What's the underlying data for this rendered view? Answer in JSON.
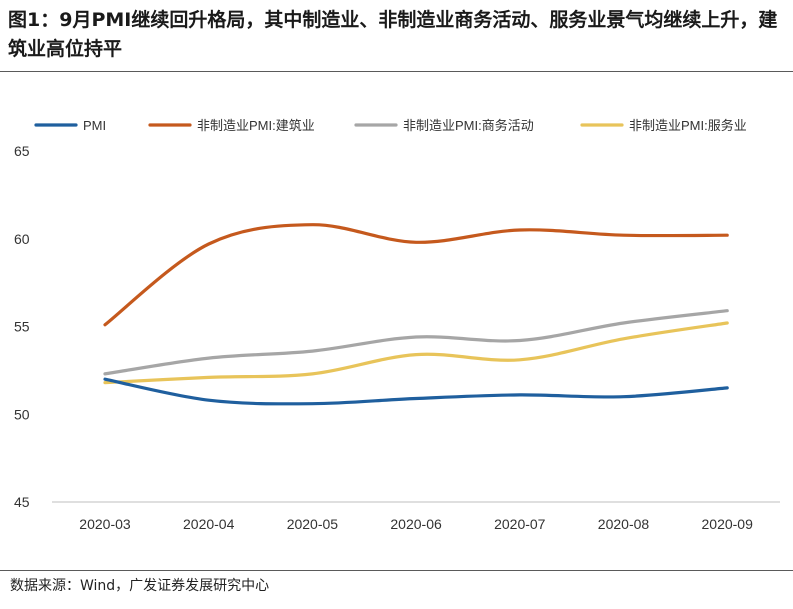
{
  "title": "图1：9月PMI继续回升格局，其中制造业、非制造业商务活动、服务业景气均继续上升，建筑业高位持平",
  "source": "数据来源：Wind，广发证券发展研究中心",
  "chart_data": {
    "type": "line",
    "title": "图1：9月PMI继续回升格局，其中制造业、非制造业商务活动、服务业景气均继续上升，建筑业高位持平",
    "xlabel": "",
    "ylabel": "",
    "ylim": [
      45,
      65
    ],
    "yticks": [
      45,
      50,
      55,
      60,
      65
    ],
    "categories": [
      "2020-03",
      "2020-04",
      "2020-05",
      "2020-06",
      "2020-07",
      "2020-08",
      "2020-09"
    ],
    "legend_position": "top",
    "series": [
      {
        "name": "PMI",
        "color": "#1f5f9e",
        "values": [
          52.0,
          50.8,
          50.6,
          50.9,
          51.1,
          51.0,
          51.5
        ]
      },
      {
        "name": "非制造业PMI:建筑业",
        "color": "#c5591d",
        "values": [
          55.1,
          59.7,
          60.8,
          59.8,
          60.5,
          60.2,
          60.2
        ]
      },
      {
        "name": "非制造业PMI:商务活动",
        "color": "#a6a6a6",
        "values": [
          52.3,
          53.2,
          53.6,
          54.4,
          54.2,
          55.2,
          55.9
        ]
      },
      {
        "name": "非制造业PMI:服务业",
        "color": "#e8c45a",
        "values": [
          51.8,
          52.1,
          52.3,
          53.4,
          53.1,
          54.3,
          55.2
        ]
      }
    ]
  }
}
